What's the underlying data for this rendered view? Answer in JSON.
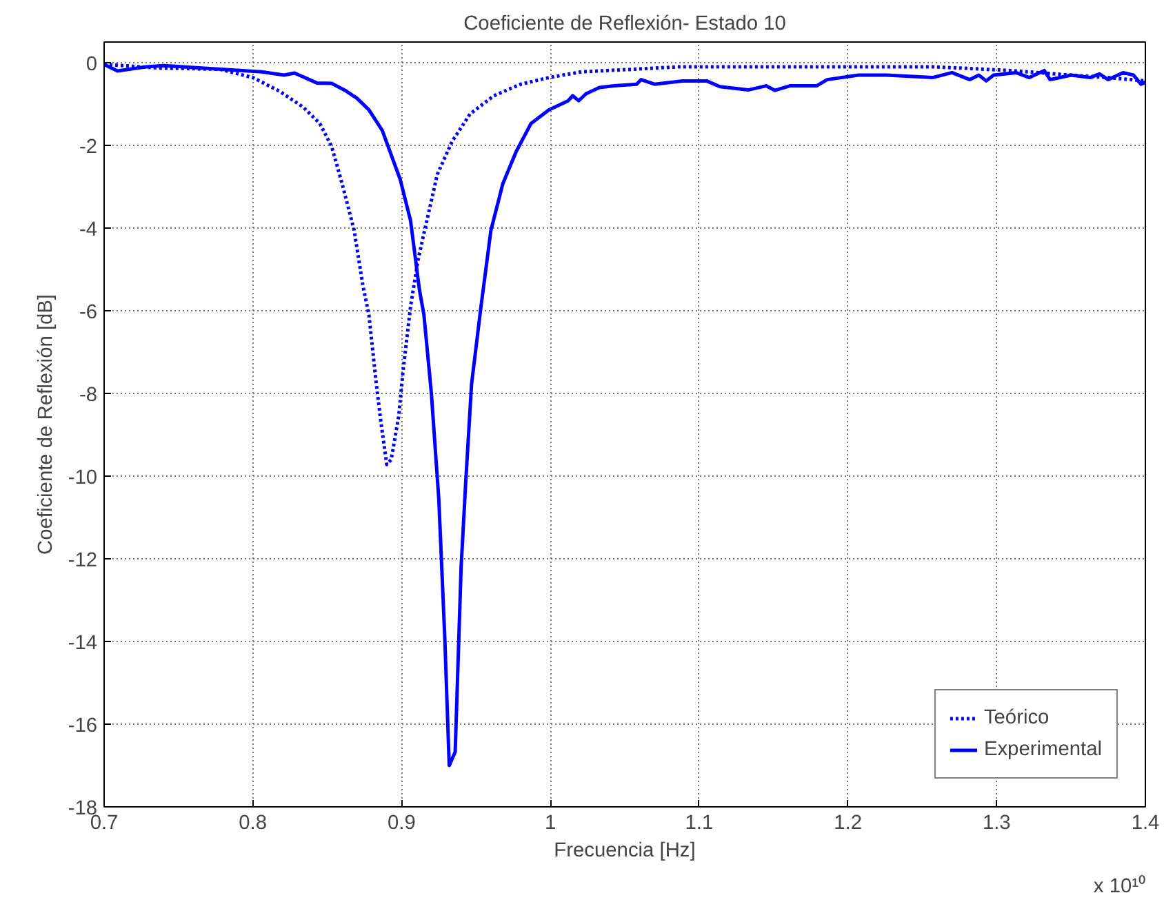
{
  "chart_data": {
    "type": "line",
    "title": "Coeficiente de Reflexión- Estado 10",
    "xlabel": "Frecuencia [Hz]",
    "ylabel": "Coeficiente de Reflexión [dB]",
    "annotations": [
      "x 10¹⁰"
    ],
    "xlim": [
      0.7,
      1.4
    ],
    "ylim": [
      -18,
      0.5
    ],
    "xticks": [
      0.7,
      0.8,
      0.9,
      1,
      1.1,
      1.2,
      1.3,
      1.4
    ],
    "yticks": [
      -18,
      -16,
      -14,
      -12,
      -10,
      -8,
      -6,
      -4,
      -2,
      0
    ],
    "grid": true,
    "legend": "bottom right",
    "marker": "none",
    "series": [
      {
        "name": "Teórico",
        "color": "#0000ff",
        "line_style": "dotted",
        "x": [
          0.7,
          0.737,
          0.778,
          0.8,
          0.818,
          0.834,
          0.845,
          0.853,
          0.86,
          0.868,
          0.874,
          0.878,
          0.883,
          0.886,
          0.89,
          0.893,
          0.898,
          0.901,
          0.906,
          0.911,
          0.915,
          0.924,
          0.934,
          0.946,
          0.962,
          0.98,
          0.999,
          1.021,
          1.055,
          1.086,
          1.257,
          1.276,
          1.31,
          1.35,
          1.375,
          1.4
        ],
        "values": [
          -0.04,
          -0.13,
          -0.16,
          -0.36,
          -0.69,
          -1.08,
          -1.47,
          -2.03,
          -2.93,
          -4.04,
          -5.4,
          -6.1,
          -7.78,
          -8.67,
          -9.72,
          -9.6,
          -8.56,
          -7.44,
          -5.9,
          -4.78,
          -4.13,
          -2.7,
          -1.9,
          -1.24,
          -0.8,
          -0.52,
          -0.36,
          -0.22,
          -0.16,
          -0.1,
          -0.1,
          -0.13,
          -0.19,
          -0.3,
          -0.36,
          -0.44
        ]
      },
      {
        "name": "Experimental",
        "color": "#0000ff",
        "line_style": "solid",
        "x": [
          0.7,
          0.709,
          0.728,
          0.74,
          0.793,
          0.806,
          0.821,
          0.828,
          0.843,
          0.853,
          0.862,
          0.87,
          0.878,
          0.887,
          0.899,
          0.906,
          0.912,
          0.915,
          0.92,
          0.925,
          0.929,
          0.932,
          0.936,
          0.94,
          0.943,
          0.947,
          0.953,
          0.96,
          0.968,
          0.977,
          0.987,
          0.999,
          1.012,
          1.015,
          1.019,
          1.024,
          1.033,
          1.043,
          1.058,
          1.061,
          1.07,
          1.089,
          1.105,
          1.114,
          1.133,
          1.145,
          1.151,
          1.161,
          1.179,
          1.186,
          1.207,
          1.226,
          1.257,
          1.27,
          1.282,
          1.288,
          1.293,
          1.298,
          1.313,
          1.322,
          1.332,
          1.336,
          1.35,
          1.363,
          1.369,
          1.375,
          1.385,
          1.392,
          1.397,
          1.4
        ],
        "values": [
          -0.04,
          -0.2,
          -0.1,
          -0.07,
          -0.19,
          -0.22,
          -0.3,
          -0.25,
          -0.49,
          -0.5,
          -0.67,
          -0.86,
          -1.14,
          -1.64,
          -2.82,
          -3.82,
          -5.5,
          -6.1,
          -8,
          -10.56,
          -13.9,
          -17.0,
          -16.67,
          -12.2,
          -10.2,
          -7.78,
          -6,
          -4.06,
          -2.93,
          -2.15,
          -1.47,
          -1.14,
          -0.92,
          -0.8,
          -0.92,
          -0.75,
          -0.6,
          -0.56,
          -0.52,
          -0.41,
          -0.52,
          -0.44,
          -0.44,
          -0.58,
          -0.66,
          -0.56,
          -0.67,
          -0.56,
          -0.56,
          -0.41,
          -0.3,
          -0.3,
          -0.36,
          -0.24,
          -0.41,
          -0.3,
          -0.44,
          -0.3,
          -0.24,
          -0.36,
          -0.19,
          -0.41,
          -0.3,
          -0.36,
          -0.27,
          -0.41,
          -0.24,
          -0.3,
          -0.52,
          -0.47
        ]
      }
    ]
  }
}
